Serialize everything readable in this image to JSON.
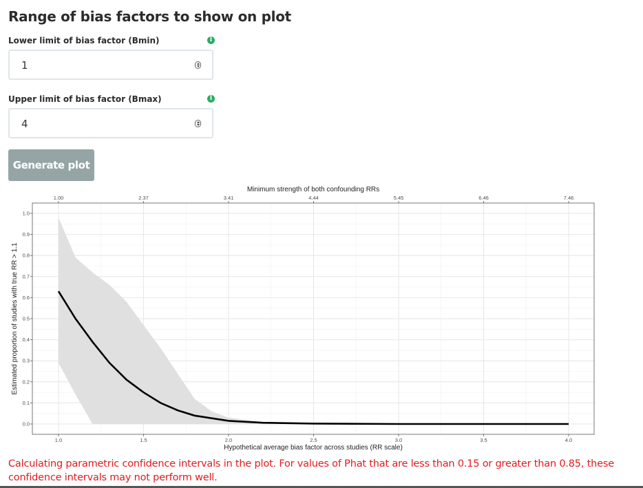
{
  "section": {
    "title": "Range of bias factors to show on plot"
  },
  "bmin": {
    "label": "Lower limit of bias factor (Bmin)",
    "value": "1",
    "info_icon": "info-icon"
  },
  "bmax": {
    "label": "Upper limit of bias factor (Bmax)",
    "value": "4",
    "info_icon": "info-icon"
  },
  "button": {
    "label": "Generate plot"
  },
  "colors": {
    "info": "#27ae60",
    "button": "#95a5a6",
    "warning": "#e31a1c",
    "ribbon": "#e0e0e0"
  },
  "chart_data": {
    "type": "line",
    "title": "",
    "xlabel": "Hypothetical average bias factor across studies (RR scale)",
    "ylabel": "Estimated proportion of studies with true RR > 1.1",
    "top_axis_label": "Minimum strength of both confounding RRs",
    "xlim": [
      1.0,
      4.0
    ],
    "ylim": [
      0.0,
      1.0
    ],
    "x_ticks": [
      "1.0",
      "1.5",
      "2.0",
      "2.5",
      "3.0",
      "3.5",
      "4.0"
    ],
    "x_tick_values": [
      1.0,
      1.5,
      2.0,
      2.5,
      3.0,
      3.5,
      4.0
    ],
    "y_ticks": [
      "0.0",
      "0.1",
      "0.2",
      "0.3",
      "0.4",
      "0.5",
      "0.6",
      "0.7",
      "0.8",
      "0.9",
      "1.0"
    ],
    "y_tick_values": [
      0.0,
      0.1,
      0.2,
      0.3,
      0.4,
      0.5,
      0.6,
      0.7,
      0.8,
      0.9,
      1.0
    ],
    "top_ticks": [
      "1.00",
      "2.37",
      "3.41",
      "4.44",
      "5.45",
      "6.46",
      "7.46"
    ],
    "top_tick_values": [
      1.0,
      1.5,
      2.0,
      2.5,
      3.0,
      3.5,
      4.0
    ],
    "grid": true,
    "series": [
      {
        "x": [
          1.0,
          1.1,
          1.2,
          1.3,
          1.4,
          1.5,
          1.6,
          1.7,
          1.8,
          2.0,
          2.2,
          2.5,
          3.0,
          3.5,
          4.0
        ],
        "y": [
          0.63,
          0.5,
          0.39,
          0.29,
          0.21,
          0.15,
          0.1,
          0.065,
          0.04,
          0.015,
          0.006,
          0.002,
          0.0,
          0.0,
          0.0
        ]
      }
    ],
    "band": {
      "x": [
        1.0,
        1.1,
        1.2,
        1.3,
        1.4,
        1.5,
        1.6,
        1.7,
        1.8,
        1.9,
        2.0,
        2.2,
        2.5,
        3.0,
        3.5,
        4.0
      ],
      "lower": [
        0.29,
        0.14,
        0.0,
        0.0,
        0.0,
        0.0,
        0.0,
        0.0,
        0.0,
        0.0,
        0.0,
        0.0,
        0.0,
        0.0,
        0.0,
        0.0
      ],
      "upper": [
        0.98,
        0.79,
        0.72,
        0.66,
        0.58,
        0.47,
        0.36,
        0.24,
        0.12,
        0.06,
        0.03,
        0.01,
        0.003,
        0.0,
        0.0,
        0.0
      ]
    }
  },
  "warning": "Calculating parametric confidence intervals in the plot. For values of Phat that are less than 0.15 or greater than 0.85, these confidence intervals may not perform well."
}
